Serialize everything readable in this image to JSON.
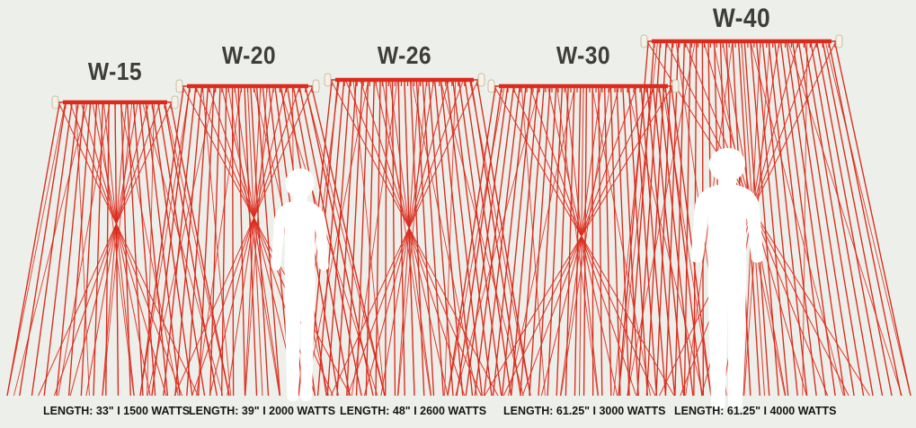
{
  "diagram_title": "infrared-heater-width-comparison",
  "colors": {
    "background": "#edf0ea",
    "ray_red": "#dc2a1c",
    "title_text": "#3e3d3b",
    "spec_text": "#141414",
    "silhouette": "#ffffff",
    "cap_fill": "#f6f1e2",
    "cap_stroke": "#b7b2a2"
  },
  "heaters": [
    {
      "model": "W-15",
      "spec": "LENGTH: 33\" I 1500 WATTS"
    },
    {
      "model": "W-20",
      "spec": "LENGTH: 39\" I 2000 WATTS"
    },
    {
      "model": "W-26",
      "spec": "LENGTH: 48\" I 2600 WATTS"
    },
    {
      "model": "W-30",
      "spec": "LENGTH: 61.25\" I 3000 WATTS"
    },
    {
      "model": "W-40",
      "spec": "LENGTH: 61.25\" I 4000 WATTS"
    }
  ]
}
